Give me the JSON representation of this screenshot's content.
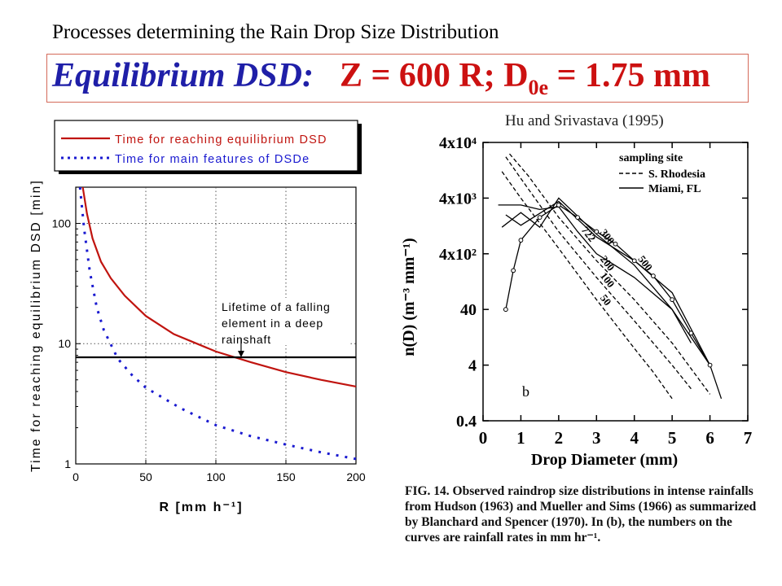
{
  "header": {
    "subtitle": "Processes determining the Rain Drop Size Distribution",
    "title_lead": "Equilibrium DSD:",
    "title_eq_part1": "Z = 600 R;  D",
    "title_eq_sub": "0e",
    "title_eq_part2": " = 1.75 mm"
  },
  "credit": "Hu and Srivastava (1995)",
  "caption": "FIG. 14. Observed raindrop size distributions in intense rainfalls from Hudson (1963) and Mueller and Sims (1966) as summarized by Blanchard and Spencer (1970). In (b), the numbers on the curves are rainfall rates in mm hr⁻¹.",
  "colors": {
    "red": "#c0140f",
    "blue": "#1a1ad0",
    "black": "#000000"
  },
  "chart_data": [
    {
      "type": "line",
      "xlabel": "R [mm h⁻¹]",
      "ylabel": "Time for reaching equilibrium DSD [min]",
      "xlim": [
        0,
        200
      ],
      "ylim": [
        1,
        200
      ],
      "yscale": "log",
      "grid": true,
      "legend_position": "top",
      "xticks": [
        "0",
        "50",
        "100",
        "150",
        "200"
      ],
      "yticks": [
        "1",
        "10",
        "100"
      ],
      "series": [
        {
          "name": "Time for reaching equilibrium DSD",
          "style": "solid",
          "color": "#c0140f",
          "x": [
            5,
            8,
            12,
            18,
            25,
            35,
            50,
            70,
            100,
            125,
            150,
            175,
            200
          ],
          "y": [
            200,
            120,
            75,
            48,
            35,
            25,
            17,
            12,
            8.6,
            7.0,
            5.8,
            5.0,
            4.4
          ]
        },
        {
          "name": "Time for main features of DSDe",
          "style": "dotted",
          "color": "#1a1ad0",
          "x": [
            3,
            6,
            10,
            15,
            20,
            30,
            40,
            50,
            75,
            100,
            125,
            150,
            175,
            200
          ],
          "y": [
            200,
            90,
            40,
            20,
            13,
            7.5,
            5.5,
            4.3,
            2.9,
            2.1,
            1.7,
            1.45,
            1.25,
            1.1
          ]
        },
        {
          "name": "",
          "style": "solid",
          "color": "#000000",
          "x": [
            0,
            200
          ],
          "y": [
            7.7,
            7.7
          ]
        }
      ],
      "annotation": {
        "text_lines": [
          "Lifetime of a falling",
          "element in a deep",
          "rainshaft"
        ],
        "x": 118,
        "y": 7.7
      }
    },
    {
      "type": "line",
      "xlabel": "Drop Diameter (mm)",
      "ylabel": "n(D) (m⁻³ mm⁻¹)",
      "xlim": [
        0,
        7
      ],
      "ylim": [
        0.4,
        40000
      ],
      "yscale": "log",
      "xticks": [
        "0",
        "1",
        "2",
        "3",
        "4",
        "5",
        "6",
        "7"
      ],
      "yticks": [
        "0.4",
        "4",
        "40",
        "4x10²",
        "4x10³",
        "4x10⁴"
      ],
      "legend_title": "sampling site",
      "panel_label": "b",
      "series": [
        {
          "name": "S. Rhodesia",
          "style": "dashed",
          "label": "50",
          "x": [
            0.5,
            1,
            2,
            3,
            4,
            4.5,
            5
          ],
          "y": [
            12000,
            4000,
            500,
            60,
            8,
            3,
            1
          ]
        },
        {
          "name": "S. Rhodesia",
          "style": "dashed",
          "label": "100",
          "x": [
            0.6,
            1,
            2,
            3,
            4,
            5,
            5.5
          ],
          "y": [
            22000,
            9000,
            1000,
            150,
            25,
            4,
            1.5
          ]
        },
        {
          "name": "S. Rhodesia",
          "style": "dashed",
          "label": "200",
          "x": [
            0.7,
            1.2,
            2,
            3,
            4,
            5,
            6
          ],
          "y": [
            25000,
            10000,
            1800,
            300,
            60,
            10,
            1.2
          ]
        },
        {
          "name": "Miami, FL",
          "style": "solid",
          "label": "722",
          "x": [
            0.4,
            1,
            1.5,
            2,
            2.5,
            3,
            4,
            5,
            5.5
          ],
          "y": [
            3000,
            3000,
            2500,
            2800,
            1000,
            400,
            150,
            40,
            10
          ]
        },
        {
          "name": "Miami, FL",
          "style": "solid",
          "label": "300",
          "x": [
            0.5,
            1,
            1.5,
            2,
            3,
            4,
            5,
            6
          ],
          "y": [
            1200,
            2200,
            1200,
            4000,
            900,
            250,
            40,
            4
          ]
        },
        {
          "name": "Miami, FL",
          "style": "solid",
          "label": "500",
          "x": [
            0.6,
            1,
            2,
            3,
            4,
            5,
            6,
            6.3
          ],
          "y": [
            2000,
            1300,
            3500,
            800,
            300,
            80,
            4,
            1
          ]
        },
        {
          "name": "",
          "style": "solid-circles",
          "label": "",
          "x": [
            0.6,
            0.8,
            1,
            1.5,
            2,
            2.5,
            3,
            3.5,
            4,
            4.5,
            5,
            5.5,
            6
          ],
          "y": [
            40,
            200,
            700,
            1800,
            3000,
            1800,
            1000,
            600,
            300,
            160,
            60,
            15,
            4
          ]
        }
      ]
    }
  ],
  "legend_left": [
    {
      "label": "Time for reaching equilibrium DSD"
    },
    {
      "label": "Time for main features of DSDe"
    }
  ],
  "legend_right": [
    {
      "label": "S. Rhodesia"
    },
    {
      "label": "Miami, FL"
    }
  ]
}
